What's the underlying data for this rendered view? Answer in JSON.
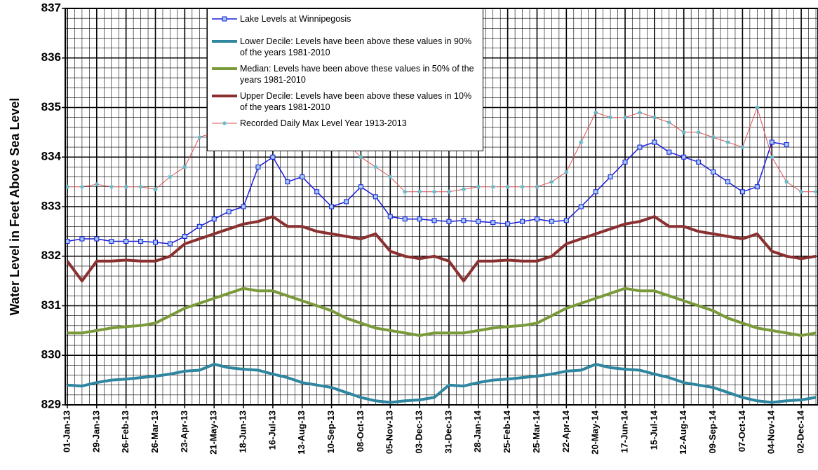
{
  "chart_data": {
    "type": "line",
    "ylabel": "Water Level in Feet Above Sea Level",
    "x": [
      "2013-01-01",
      "2013-01-15",
      "2013-01-29",
      "2013-02-12",
      "2013-02-26",
      "2013-03-12",
      "2013-03-26",
      "2013-04-09",
      "2013-04-23",
      "2013-05-07",
      "2013-05-21",
      "2013-06-04",
      "2013-06-18",
      "2013-07-02",
      "2013-07-16",
      "2013-07-30",
      "2013-08-13",
      "2013-08-27",
      "2013-09-10",
      "2013-09-24",
      "2013-10-08",
      "2013-10-22",
      "2013-11-05",
      "2013-11-19",
      "2013-12-03",
      "2013-12-17",
      "2013-12-31",
      "2014-01-14",
      "2014-01-28",
      "2014-02-11",
      "2014-02-25",
      "2014-03-11",
      "2014-03-25",
      "2014-04-08",
      "2014-04-22",
      "2014-05-06",
      "2014-05-20",
      "2014-06-03",
      "2014-06-17",
      "2014-07-01",
      "2014-07-15",
      "2014-07-29",
      "2014-08-12",
      "2014-08-26",
      "2014-09-09",
      "2014-09-23",
      "2014-10-07",
      "2014-10-21",
      "2014-11-04",
      "2014-11-18",
      "2014-12-02",
      "2014-12-16"
    ],
    "series": [
      {
        "name": "Lake Levels at Winnipegosis",
        "color": "#1a1adc",
        "marker": "square",
        "width": 1.5,
        "values": [
          832.3,
          832.35,
          832.35,
          832.3,
          832.3,
          832.3,
          832.28,
          832.25,
          832.4,
          832.6,
          832.75,
          832.9,
          833.0,
          833.8,
          834.0,
          833.5,
          833.6,
          833.3,
          833.0,
          833.1,
          833.4,
          833.2,
          832.8,
          832.75,
          832.75,
          832.72,
          832.7,
          832.72,
          832.7,
          832.68,
          832.65,
          832.7,
          832.75,
          832.7,
          832.72,
          833.0,
          833.3,
          833.6,
          833.9,
          834.2,
          834.3,
          834.1,
          834.0,
          833.9,
          833.7,
          833.5,
          833.3,
          833.4,
          834.3,
          834.25,
          null,
          null
        ]
      },
      {
        "name": "Lower Decile: Levels have been above these values in 90% of the years 1981-2010",
        "color": "#2e86a0",
        "width": 4,
        "values": [
          829.4,
          829.38,
          829.45,
          829.5,
          829.52,
          829.55,
          829.58,
          829.62,
          829.68,
          829.7,
          829.82,
          829.75,
          829.72,
          829.7,
          829.62,
          829.55,
          829.45,
          829.4,
          829.35,
          829.25,
          829.15,
          829.08,
          829.05,
          829.08,
          829.1,
          829.15,
          829.4,
          829.38,
          829.45,
          829.5,
          829.52,
          829.55,
          829.58,
          829.62,
          829.68,
          829.7,
          829.82,
          829.75,
          829.72,
          829.7,
          829.62,
          829.55,
          829.45,
          829.4,
          829.35,
          829.25,
          829.15,
          829.08,
          829.05,
          829.08,
          829.1,
          829.15
        ]
      },
      {
        "name": "Median: Levels have been above these values in 50% of the years 1981-2010",
        "color": "#7a9a3a",
        "width": 4,
        "values": [
          830.45,
          830.45,
          830.5,
          830.55,
          830.58,
          830.6,
          830.65,
          830.8,
          830.95,
          831.05,
          831.15,
          831.25,
          831.35,
          831.3,
          831.3,
          831.2,
          831.1,
          831.0,
          830.9,
          830.75,
          830.65,
          830.55,
          830.5,
          830.45,
          830.4,
          830.45,
          830.45,
          830.45,
          830.5,
          830.55,
          830.58,
          830.6,
          830.65,
          830.8,
          830.95,
          831.05,
          831.15,
          831.25,
          831.35,
          831.3,
          831.3,
          831.2,
          831.1,
          831.0,
          830.9,
          830.75,
          830.65,
          830.55,
          830.5,
          830.45,
          830.4,
          830.45
        ]
      },
      {
        "name": "Upper Decile: Levels have been above these values in 10% of the years 1981-2010",
        "color": "#8b3030",
        "width": 4,
        "values": [
          831.9,
          831.5,
          831.9,
          831.9,
          831.92,
          831.9,
          831.9,
          832.0,
          832.25,
          832.35,
          832.45,
          832.55,
          832.65,
          832.7,
          832.8,
          832.6,
          832.6,
          832.5,
          832.45,
          832.4,
          832.35,
          832.45,
          832.1,
          832.0,
          831.95,
          832.0,
          831.9,
          831.5,
          831.9,
          831.9,
          831.92,
          831.9,
          831.9,
          832.0,
          832.25,
          832.35,
          832.45,
          832.55,
          832.65,
          832.7,
          832.8,
          832.6,
          832.6,
          832.5,
          832.45,
          832.4,
          832.35,
          832.45,
          832.1,
          832.0,
          831.95,
          832.0
        ]
      },
      {
        "name": "Recorded Daily Max Level Year 1913-2013",
        "color": "#e05050",
        "marker": "star",
        "marker_color": "#5cb8c8",
        "width": 1,
        "values": [
          833.4,
          833.4,
          833.45,
          833.4,
          833.4,
          833.4,
          833.35,
          833.6,
          833.8,
          834.4,
          834.5,
          834.6,
          834.7,
          834.7,
          834.9,
          834.8,
          834.8,
          834.5,
          834.5,
          834.3,
          834.0,
          833.8,
          833.6,
          833.3,
          833.3,
          833.3,
          833.3,
          833.35,
          833.4,
          833.4,
          833.4,
          833.4,
          833.4,
          833.5,
          833.7,
          834.3,
          834.9,
          834.8,
          834.8,
          834.9,
          834.8,
          834.7,
          834.5,
          834.5,
          834.4,
          834.3,
          834.2,
          835.0,
          834.0,
          833.5,
          833.3,
          833.3
        ]
      }
    ],
    "xlim": [
      "2012-12-30",
      "2014-12-18"
    ],
    "xticks": [
      {
        "value": "2013-01-01",
        "label": "01-Jan-13"
      },
      {
        "value": "2013-01-29",
        "label": "29-Jan-13"
      },
      {
        "value": "2013-02-26",
        "label": "26-Feb-13"
      },
      {
        "value": "2013-03-26",
        "label": "26-Mar-13"
      },
      {
        "value": "2013-04-23",
        "label": "23-Apr-13"
      },
      {
        "value": "2013-05-21",
        "label": "21-May-13"
      },
      {
        "value": "2013-06-18",
        "label": "18-Jun-13"
      },
      {
        "value": "2013-07-16",
        "label": "16-Jul-13"
      },
      {
        "value": "2013-08-13",
        "label": "13-Aug-13"
      },
      {
        "value": "2013-09-10",
        "label": "10-Sep-13"
      },
      {
        "value": "2013-10-08",
        "label": "08-Oct-13"
      },
      {
        "value": "2013-11-05",
        "label": "05-Nov-13"
      },
      {
        "value": "2013-12-03",
        "label": "03-Dec-13"
      },
      {
        "value": "2013-12-31",
        "label": "31-Dec-13"
      },
      {
        "value": "2014-01-28",
        "label": "28-Jan-14"
      },
      {
        "value": "2014-02-25",
        "label": "25-Feb-14"
      },
      {
        "value": "2014-03-25",
        "label": "25-Mar-14"
      },
      {
        "value": "2014-04-22",
        "label": "22-Apr-14"
      },
      {
        "value": "2014-05-20",
        "label": "20-May-14"
      },
      {
        "value": "2014-06-17",
        "label": "17-Jun-14"
      },
      {
        "value": "2014-07-15",
        "label": "15-Jul-14"
      },
      {
        "value": "2014-08-12",
        "label": "12-Aug-14"
      },
      {
        "value": "2014-09-09",
        "label": "09-Sep-14"
      },
      {
        "value": "2014-10-07",
        "label": "07-Oct-14"
      },
      {
        "value": "2014-11-04",
        "label": "04-Nov-14"
      },
      {
        "value": "2014-12-02",
        "label": "02-Dec-14"
      }
    ],
    "ylim": [
      829,
      837
    ],
    "yticks": [
      829,
      830,
      831,
      832,
      833,
      834,
      835,
      836,
      837
    ],
    "grid": true,
    "legend": "top"
  }
}
